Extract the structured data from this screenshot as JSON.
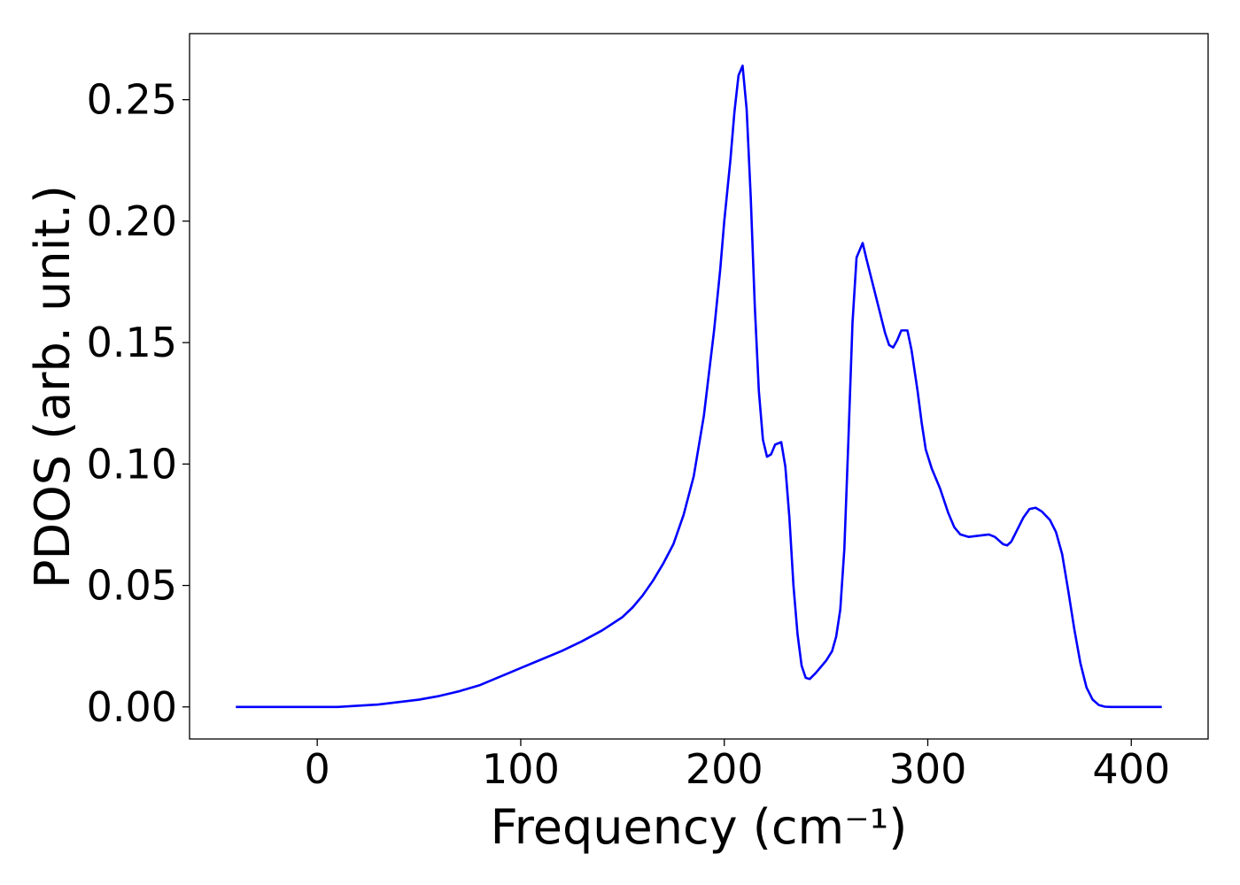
{
  "chart_data": {
    "type": "line",
    "x_label": "Frequency (cm⁻¹)",
    "y_label": "PDOS (arb. unit.)",
    "xlim": [
      -62.75,
      437.75
    ],
    "xticks": [
      0,
      100,
      200,
      300,
      400
    ],
    "ylim": [
      -0.0132,
      0.2772
    ],
    "yticks": [
      {
        "value": 0,
        "label": "0.00"
      },
      0.05,
      {
        "value": 0.1,
        "label": "0.10"
      },
      0.15,
      {
        "value": 0.2,
        "label": "0.20"
      },
      0.25
    ],
    "grid": false,
    "series": [
      {
        "color": "#0000ff",
        "x": [
          -40,
          0,
          10,
          20,
          30,
          40,
          50,
          60,
          70,
          80,
          90,
          100,
          110,
          120,
          130,
          140,
          150,
          155,
          160,
          165,
          170,
          175,
          180,
          185,
          190,
          195,
          198,
          200,
          203,
          205,
          207,
          209,
          211,
          213,
          215,
          217,
          219,
          221,
          223,
          225,
          228,
          230,
          232,
          234,
          236,
          238,
          240,
          242,
          245,
          250,
          253,
          255,
          257,
          259,
          261,
          263,
          265,
          268,
          270,
          273,
          276,
          279,
          281,
          283,
          285,
          287,
          290,
          292,
          295,
          297,
          299,
          302,
          306,
          310,
          313,
          316,
          320,
          325,
          330,
          333,
          337,
          339,
          341,
          344,
          347,
          350,
          353,
          356,
          360,
          363,
          366,
          369,
          372,
          375,
          378,
          381,
          384,
          387,
          390,
          400,
          415
        ],
        "values": [
          0,
          0,
          0,
          0.0005,
          0.001,
          0.002,
          0.003,
          0.0045,
          0.0065,
          0.009,
          0.0125,
          0.016,
          0.0195,
          0.023,
          0.027,
          0.0315,
          0.037,
          0.041,
          0.046,
          0.052,
          0.059,
          0.067,
          0.079,
          0.095,
          0.12,
          0.155,
          0.18,
          0.2,
          0.225,
          0.245,
          0.26,
          0.264,
          0.246,
          0.21,
          0.165,
          0.13,
          0.11,
          0.103,
          0.104,
          0.108,
          0.109,
          0.099,
          0.078,
          0.05,
          0.03,
          0.017,
          0.012,
          0.0115,
          0.014,
          0.019,
          0.023,
          0.029,
          0.04,
          0.065,
          0.11,
          0.158,
          0.185,
          0.191,
          0.184,
          0.174,
          0.164,
          0.154,
          0.149,
          0.148,
          0.151,
          0.155,
          0.155,
          0.147,
          0.13,
          0.117,
          0.106,
          0.098,
          0.09,
          0.08,
          0.074,
          0.071,
          0.07,
          0.0705,
          0.071,
          0.07,
          0.067,
          0.0665,
          0.068,
          0.073,
          0.078,
          0.0815,
          0.082,
          0.0805,
          0.077,
          0.072,
          0.063,
          0.048,
          0.032,
          0.018,
          0.008,
          0.003,
          0.0008,
          0.0001,
          0,
          0,
          0
        ]
      }
    ]
  }
}
